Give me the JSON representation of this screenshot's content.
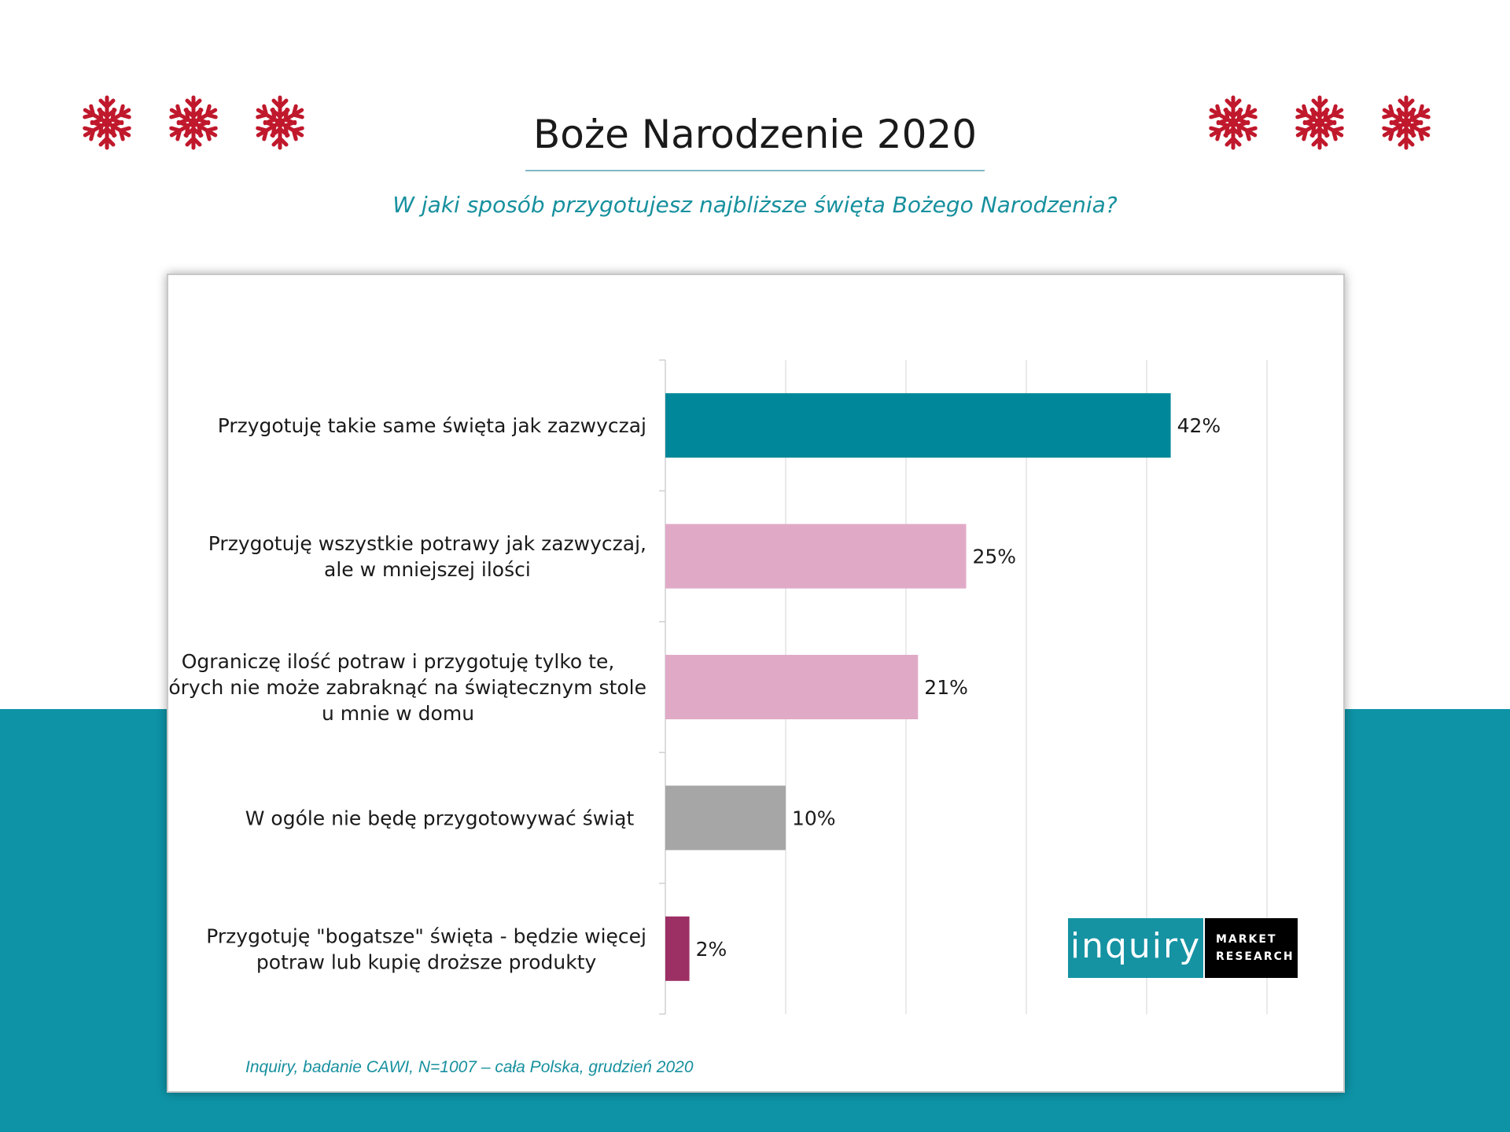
{
  "title": "Boże Narodzenie 2020",
  "subtitle": "W jaki  sposób przygotujesz najbliższe święta Bożego Narodzenia?",
  "decor": {
    "snowflake_color": "#c0182c",
    "icon": "snowflake-icon",
    "teal_band_color": "#0e93a6"
  },
  "source_note": "Inquiry, badanie CAWI, N=1007 – cała Polska, grudzień 2020",
  "logo": {
    "brand": "inquiry",
    "tag_line1": "MARKET",
    "tag_line2": "RESEARCH"
  },
  "chart_data": {
    "type": "bar",
    "orientation": "horizontal",
    "categories": [
      [
        "Przygotuję takie same święta jak zazwyczaj"
      ],
      [
        "Przygotuję wszystkie potrawy jak zazwyczaj,",
        "ale w mniejszej ilości"
      ],
      [
        "Ograniczę ilość potraw i przygotuję tylko te,",
        "których nie może zabraknąć na świątecznym stole",
        "u mnie w domu"
      ],
      [
        "W ogóle nie będę przygotowywać świąt"
      ],
      [
        "Przygotuję \"bogatsze\" święta - będzie więcej",
        "potraw lub kupię droższe produkty"
      ]
    ],
    "values": [
      42,
      25,
      21,
      10,
      2
    ],
    "data_labels": [
      "42%",
      "25%",
      "21%",
      "10%",
      "2%"
    ],
    "colors": [
      "#008799",
      "#e0aac7",
      "#e0aac7",
      "#a6a6a6",
      "#9c2f64"
    ],
    "xlim": [
      0,
      50
    ],
    "grid": true,
    "legend": "none"
  }
}
